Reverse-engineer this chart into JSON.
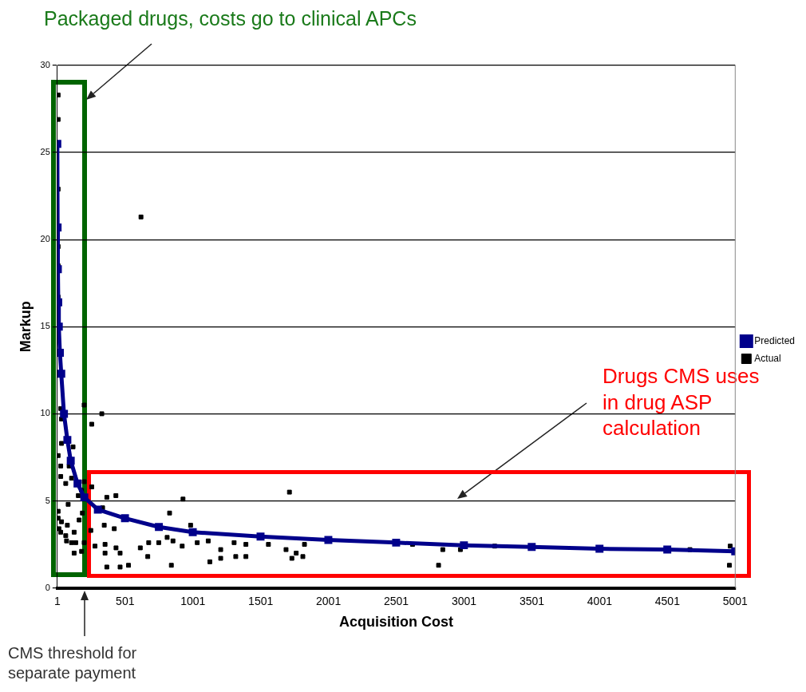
{
  "chart_data": {
    "type": "scatter",
    "xlabel": "Acquisition Cost",
    "ylabel": "Markup",
    "xlim": [
      1,
      5001
    ],
    "xticks": [
      1,
      501,
      1001,
      1501,
      2001,
      2501,
      3001,
      3501,
      4001,
      4501,
      5001
    ],
    "ylim": [
      0,
      30
    ],
    "yticks": [
      0,
      5,
      10,
      15,
      20,
      25,
      30
    ],
    "grid": "y",
    "legend": "right",
    "marker": "square",
    "annotations": [
      "Packaged drugs, costs go to clinical APCs",
      "Drugs CMS uses in drug ASP calculation",
      "CMS threshold for separate payment"
    ],
    "series": [
      {
        "name": "Predicted",
        "type": "line",
        "color": "#00008b",
        "x": [
          1,
          3,
          5,
          8,
          12,
          20,
          30,
          50,
          75,
          100,
          150,
          200,
          300,
          500,
          750,
          1000,
          1500,
          2000,
          2500,
          3000,
          3500,
          4000,
          4500,
          5001
        ],
        "values": [
          25.5,
          20.7,
          18.3,
          16.4,
          15.0,
          13.5,
          12.3,
          10.0,
          8.5,
          7.3,
          6.0,
          5.2,
          4.5,
          4.0,
          3.5,
          3.2,
          2.95,
          2.75,
          2.6,
          2.45,
          2.35,
          2.25,
          2.2,
          2.1
        ]
      },
      {
        "name": "Actual",
        "type": "scatter",
        "color": "#000000",
        "x": [
          7,
          7,
          7,
          7,
          7,
          7,
          618,
          26,
          32,
          32,
          7,
          117,
          26,
          88,
          26,
          106,
          63,
          199,
          255,
          180,
          156,
          81,
          366,
          433,
          928,
          335,
          7,
          186,
          7,
          32,
          162,
          347,
          421,
          829,
          984,
          75,
          26,
          125,
          248,
          69,
          137,
          199,
          279,
          353,
          434,
          675,
          749,
          811,
          854,
          922,
          1033,
          1114,
          1305,
          1392,
          1558,
          125,
          180,
          353,
          464,
          613,
          668,
          366,
          464,
          526,
          842,
          1126,
          1206,
          1206,
          1317,
          1392,
          13,
          63,
          106,
          199,
          255,
          329,
          1713,
          1688,
          1731,
          1763,
          1812,
          1824,
          2621,
          2813,
          2844,
          2974,
          3227,
          4667,
          4964,
          4958
        ],
        "values": [
          28.3,
          26.9,
          22.9,
          19.6,
          18.5,
          16.7,
          21.3,
          10.3,
          9.7,
          8.3,
          7.6,
          8.1,
          7.0,
          7.0,
          6.4,
          6.3,
          6.0,
          6.1,
          5.8,
          5.6,
          5.3,
          4.8,
          5.2,
          5.3,
          5.1,
          4.6,
          4.4,
          4.3,
          4.0,
          3.8,
          3.9,
          3.6,
          3.4,
          4.3,
          3.6,
          3.6,
          3.2,
          3.2,
          3.3,
          2.7,
          2.6,
          2.6,
          2.4,
          2.5,
          2.3,
          2.6,
          2.6,
          2.9,
          2.7,
          2.4,
          2.6,
          2.7,
          2.6,
          2.5,
          2.5,
          2.0,
          2.1,
          2.0,
          2.0,
          2.3,
          1.8,
          1.2,
          1.2,
          1.3,
          1.3,
          1.5,
          2.2,
          1.7,
          1.8,
          1.8,
          3.4,
          3.0,
          2.6,
          10.5,
          9.4,
          10.0,
          5.5,
          2.2,
          1.7,
          2.0,
          1.8,
          2.5,
          2.5,
          1.3,
          2.2,
          2.2,
          2.4,
          2.2,
          2.4,
          1.3
        ]
      }
    ]
  }
}
